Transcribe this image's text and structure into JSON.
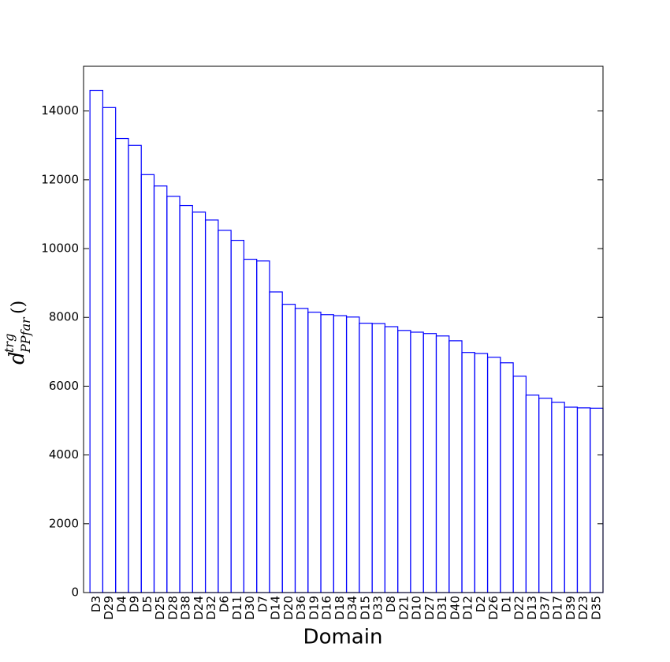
{
  "chart_data": {
    "type": "bar",
    "xlabel": "Domain",
    "ylabel": {
      "base": "d",
      "sup": "trg",
      "sub": "PPfar",
      "suffix": "()"
    },
    "categories": [
      "D3",
      "D29",
      "D4",
      "D9",
      "D5",
      "D25",
      "D28",
      "D38",
      "D24",
      "D32",
      "D6",
      "D11",
      "D30",
      "D7",
      "D14",
      "D20",
      "D36",
      "D19",
      "D16",
      "D18",
      "D34",
      "D15",
      "D33",
      "D8",
      "D21",
      "D10",
      "D27",
      "D31",
      "D40",
      "D12",
      "D2",
      "D26",
      "D1",
      "D22",
      "D13",
      "D37",
      "D17",
      "D39",
      "D23",
      "D35"
    ],
    "values": [
      14600,
      14100,
      13200,
      13000,
      12150,
      11820,
      11520,
      11250,
      11060,
      10830,
      10530,
      10240,
      9690,
      9640,
      8740,
      8380,
      8260,
      8150,
      8080,
      8050,
      8010,
      7830,
      7820,
      7730,
      7620,
      7570,
      7530,
      7460,
      7320,
      6980,
      6950,
      6840,
      6680,
      6290,
      5740,
      5650,
      5530,
      5390,
      5370,
      5360
    ],
    "color": "#0000ff",
    "fill": "none",
    "ylim": [
      0,
      15300
    ],
    "yticks": [
      0,
      2000,
      4000,
      6000,
      8000,
      10000,
      12000,
      14000
    ]
  }
}
